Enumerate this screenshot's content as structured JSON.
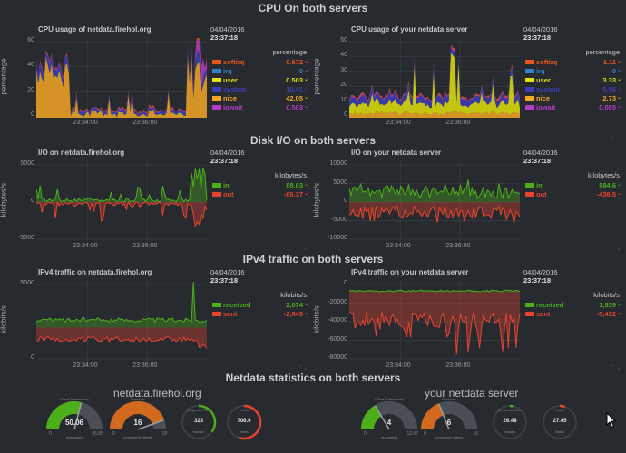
{
  "sections": [
    {
      "title": "CPU On both servers"
    },
    {
      "title": "Disk I/O on both servers"
    },
    {
      "title": "IPv4 traffic on both servers"
    },
    {
      "title": "Netdata statistics on both servers"
    }
  ],
  "charts": {
    "cpu_left": {
      "title": "CPU usage of netdata.firehol.org",
      "ylabel": "percentage",
      "date": "04/04/2016",
      "time": "23:37:18",
      "units": "percentage",
      "yticks": [
        "60",
        "40",
        "20",
        "0"
      ],
      "xticks": [
        "23:34:00",
        "23:36:00"
      ],
      "legend": [
        {
          "name": "softirq",
          "value": "0.672",
          "color": "#e8561d"
        },
        {
          "name": "irq",
          "value": "0",
          "color": "#2f83c5"
        },
        {
          "name": "user",
          "value": "0.503",
          "color": "#e0e00a"
        },
        {
          "name": "system",
          "value": "10.41",
          "color": "#3d3dbb"
        },
        {
          "name": "nice",
          "value": "42.05",
          "color": "#f5a623"
        },
        {
          "name": "iowait",
          "value": "0.503",
          "color": "#b53ac8"
        }
      ]
    },
    "cpu_right": {
      "title": "CPU usage of your netdata server",
      "ylabel": "percentage",
      "date": "04/04/2016",
      "time": "23:37:18",
      "units": "percentage",
      "yticks": [
        "50",
        "40",
        "30",
        "20",
        "10",
        "0"
      ],
      "xticks": [
        "23:34:00",
        "23:36:00"
      ],
      "legend": [
        {
          "name": "softirq",
          "value": "1.11",
          "color": "#e8561d"
        },
        {
          "name": "irq",
          "value": "0",
          "color": "#2f83c5"
        },
        {
          "name": "user",
          "value": "3.33",
          "color": "#e0e00a"
        },
        {
          "name": "system",
          "value": "5.96",
          "color": "#3d3dbb"
        },
        {
          "name": "nice",
          "value": "2.73",
          "color": "#f5a623"
        },
        {
          "name": "iowait",
          "value": "0.085",
          "color": "#b53ac8"
        }
      ]
    },
    "io_left": {
      "title": "I/O on netdata.firehol.org",
      "ylabel": "kilobytes/s",
      "date": "04/04/2016",
      "time": "23:37:18",
      "units": "kilobytes/s",
      "yticks": [
        "5000",
        "0",
        "-5000"
      ],
      "xticks": [
        "23:34:00",
        "23:36:00"
      ],
      "legend": [
        {
          "name": "in",
          "value": "68.03",
          "color": "#4caf1a"
        },
        {
          "name": "out",
          "value": "-66.37",
          "color": "#e8432f"
        }
      ]
    },
    "io_right": {
      "title": "I/O on your netdata server",
      "ylabel": "kilobytes/s",
      "date": "04/04/2016",
      "time": "23:37:18",
      "units": "kilobytes/s",
      "yticks": [
        "10000",
        "5000",
        "0",
        "-5000",
        "-10000"
      ],
      "xticks": [
        "23:34:00",
        "23:36:00"
      ],
      "legend": [
        {
          "name": "in",
          "value": "684.6",
          "color": "#4caf1a"
        },
        {
          "name": "out",
          "value": "-438.5",
          "color": "#e8432f"
        }
      ]
    },
    "net_left": {
      "title": "IPv4 traffic on netdata.firehol.org",
      "ylabel": "kilobits/s",
      "date": "04/04/2016",
      "time": "23:37:18",
      "units": "kilobits/s",
      "yticks": [
        "5000",
        "0"
      ],
      "xticks": [
        "23:34:00",
        "23:36:00"
      ],
      "legend": [
        {
          "name": "received",
          "value": "2,074",
          "color": "#4caf1a"
        },
        {
          "name": "sent",
          "value": "-2,645",
          "color": "#e8432f"
        }
      ]
    },
    "net_right": {
      "title": "IPv4 traffic on your netdata server",
      "ylabel": "kilobits/s",
      "date": "04/04/2016",
      "time": "23:37:18",
      "units": "kilobits/s",
      "yticks": [
        "0",
        "-20000",
        "-40000",
        "-60000",
        "-80000"
      ],
      "xticks": [
        "23:34:00",
        "23:36:00"
      ],
      "legend": [
        {
          "name": "received",
          "value": "1,939",
          "color": "#4caf1a"
        },
        {
          "name": "sent",
          "value": "-5,432",
          "color": "#e8432f"
        }
      ]
    }
  },
  "servers": [
    {
      "name": "netdata.firehol.org",
      "gauges": [
        {
          "label": "Client Bottlenecks",
          "value": "50.06",
          "min": "0",
          "max": "85.85",
          "sub": "requests/s",
          "color": "#4caf1a",
          "fill": 0.58
        },
        {
          "label": "Sessions",
          "value": "16",
          "min": "0",
          "max": "18",
          "sub": "connected clients",
          "color": "#d2691e",
          "fill": 0.89
        },
        {
          "label": "Requests Time",
          "value": "323",
          "sub": "ms/sec",
          "color": "#4caf1a",
          "fill": 0.35
        },
        {
          "label": "Traffic",
          "value": "706.9",
          "sub": "kbit/s",
          "color": "#e8432f",
          "fill": 0.55
        }
      ]
    },
    {
      "name": "your netdata server",
      "gauges": [
        {
          "label": "Client Bottlenecks",
          "value": "4",
          "min": "0",
          "max": "12.07",
          "sub": "requests/s",
          "color": "#4caf1a",
          "fill": 0.33
        },
        {
          "label": "Sessions",
          "value": "6",
          "min": "0",
          "max": "16",
          "sub": "connected clients",
          "color": "#d2691e",
          "fill": 0.38
        },
        {
          "label": "Requests Time",
          "value": "26.48",
          "sub": "ms/sec",
          "color": "#4caf1a",
          "fill": 0.03
        },
        {
          "label": "Traffic",
          "value": "27.45",
          "sub": "kbit/s",
          "color": "#e8432f",
          "fill": 0.05
        }
      ]
    }
  ]
}
